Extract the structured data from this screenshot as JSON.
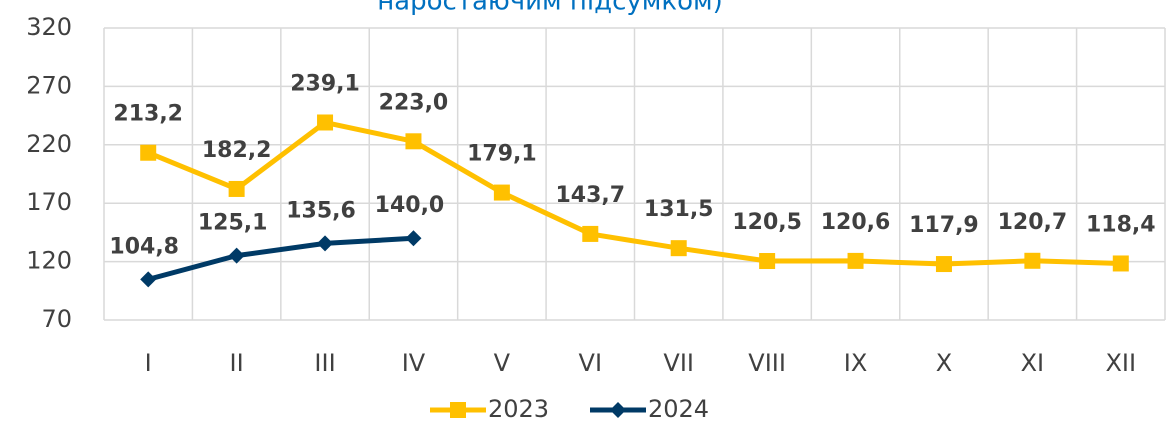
{
  "chart_data": {
    "type": "line",
    "title": "наростаючим підсумком)",
    "categories": [
      "I",
      "II",
      "III",
      "IV",
      "V",
      "VI",
      "VII",
      "VIII",
      "IX",
      "X",
      "XI",
      "XII"
    ],
    "series": [
      {
        "name": "2023",
        "color": "#FFC000",
        "marker": "square",
        "values": [
          213.2,
          182.2,
          239.1,
          223.0,
          179.1,
          143.7,
          131.5,
          120.5,
          120.6,
          117.9,
          120.7,
          118.4
        ],
        "value_labels": [
          "213,2",
          "182,2",
          "239,1",
          "223,0",
          "179,1",
          "143,7",
          "131,5",
          "120,5",
          "120,6",
          "117,9",
          "120,7",
          "118,4"
        ]
      },
      {
        "name": "2024",
        "color": "#003A66",
        "marker": "diamond",
        "values": [
          104.8,
          125.1,
          135.6,
          140.0,
          null,
          null,
          null,
          null,
          null,
          null,
          null,
          null
        ],
        "value_labels": [
          "104,8",
          "125,1",
          "135,6",
          "140,0",
          null,
          null,
          null,
          null,
          null,
          null,
          null,
          null
        ]
      }
    ],
    "ylim": [
      70,
      320
    ],
    "yticks": [
      70,
      120,
      170,
      220,
      270,
      320
    ],
    "grid": true,
    "legend": "bottom"
  }
}
